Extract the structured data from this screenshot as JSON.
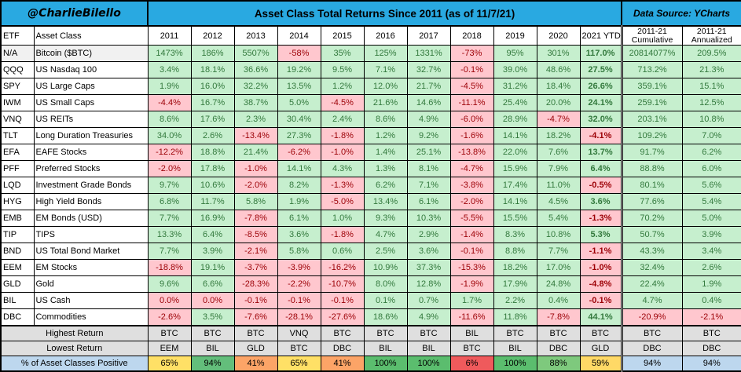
{
  "banner": {
    "handle": "@CharlieBilello",
    "title": "Asset Class Total Returns Since 2011 (as of 11/7/21)",
    "source": "Data Source: YCharts"
  },
  "colors": {
    "banner_blue": "#29A9E1",
    "positive_bg": "#C6EFCE",
    "positive_text": "#33793D",
    "negative_bg": "#FFC7CE",
    "negative_text": "#9C0006",
    "gray_header": "#B3B3B3",
    "summary_gray": "#DFDFDF",
    "light_blue": "#BDD7EE"
  },
  "chart_data": {
    "type": "table",
    "title": "Asset Class Total Returns Since 2011 (as of 11/7/21)",
    "columns": [
      "ETF",
      "Asset Class",
      "2011",
      "2012",
      "2013",
      "2014",
      "2015",
      "2016",
      "2017",
      "2018",
      "2019",
      "2020",
      "2021 YTD",
      "2011-21 Cumulative",
      "2011-21 Annualized"
    ],
    "rows": [
      {
        "etf": "N/A",
        "name": "Bitcoin ($BTC)",
        "values": [
          "1473%",
          "186%",
          "5507%",
          "-58%",
          "35%",
          "125%",
          "1331%",
          "-73%",
          "95%",
          "301%"
        ],
        "ytd": "117.0%",
        "cumulative": "20814077%",
        "annualized": "209.5%"
      },
      {
        "etf": "QQQ",
        "name": "US Nasdaq 100",
        "values": [
          "3.4%",
          "18.1%",
          "36.6%",
          "19.2%",
          "9.5%",
          "7.1%",
          "32.7%",
          "-0.1%",
          "39.0%",
          "48.6%"
        ],
        "ytd": "27.5%",
        "cumulative": "713.2%",
        "annualized": "21.3%"
      },
      {
        "etf": "SPY",
        "name": "US Large Caps",
        "values": [
          "1.9%",
          "16.0%",
          "32.2%",
          "13.5%",
          "1.2%",
          "12.0%",
          "21.7%",
          "-4.5%",
          "31.2%",
          "18.4%"
        ],
        "ytd": "26.6%",
        "cumulative": "359.1%",
        "annualized": "15.1%"
      },
      {
        "etf": "IWM",
        "name": "US Small Caps",
        "values": [
          "-4.4%",
          "16.7%",
          "38.7%",
          "5.0%",
          "-4.5%",
          "21.6%",
          "14.6%",
          "-11.1%",
          "25.4%",
          "20.0%"
        ],
        "ytd": "24.1%",
        "cumulative": "259.1%",
        "annualized": "12.5%"
      },
      {
        "etf": "VNQ",
        "name": "US REITs",
        "values": [
          "8.6%",
          "17.6%",
          "2.3%",
          "30.4%",
          "2.4%",
          "8.6%",
          "4.9%",
          "-6.0%",
          "28.9%",
          "-4.7%"
        ],
        "ytd": "32.0%",
        "cumulative": "203.1%",
        "annualized": "10.8%"
      },
      {
        "etf": "TLT",
        "name": "Long Duration Treasuries",
        "values": [
          "34.0%",
          "2.6%",
          "-13.4%",
          "27.3%",
          "-1.8%",
          "1.2%",
          "9.2%",
          "-1.6%",
          "14.1%",
          "18.2%"
        ],
        "ytd": "-4.1%",
        "cumulative": "109.2%",
        "annualized": "7.0%"
      },
      {
        "etf": "EFA",
        "name": "EAFE Stocks",
        "values": [
          "-12.2%",
          "18.8%",
          "21.4%",
          "-6.2%",
          "-1.0%",
          "1.4%",
          "25.1%",
          "-13.8%",
          "22.0%",
          "7.6%"
        ],
        "ytd": "13.7%",
        "cumulative": "91.7%",
        "annualized": "6.2%"
      },
      {
        "etf": "PFF",
        "name": "Preferred Stocks",
        "values": [
          "-2.0%",
          "17.8%",
          "-1.0%",
          "14.1%",
          "4.3%",
          "1.3%",
          "8.1%",
          "-4.7%",
          "15.9%",
          "7.9%"
        ],
        "ytd": "6.4%",
        "cumulative": "88.8%",
        "annualized": "6.0%"
      },
      {
        "etf": "LQD",
        "name": "Investment Grade Bonds",
        "values": [
          "9.7%",
          "10.6%",
          "-2.0%",
          "8.2%",
          "-1.3%",
          "6.2%",
          "7.1%",
          "-3.8%",
          "17.4%",
          "11.0%"
        ],
        "ytd": "-0.5%",
        "cumulative": "80.1%",
        "annualized": "5.6%"
      },
      {
        "etf": "HYG",
        "name": "High Yield Bonds",
        "values": [
          "6.8%",
          "11.7%",
          "5.8%",
          "1.9%",
          "-5.0%",
          "13.4%",
          "6.1%",
          "-2.0%",
          "14.1%",
          "4.5%"
        ],
        "ytd": "3.6%",
        "cumulative": "77.6%",
        "annualized": "5.4%"
      },
      {
        "etf": "EMB",
        "name": "EM Bonds (USD)",
        "values": [
          "7.7%",
          "16.9%",
          "-7.8%",
          "6.1%",
          "1.0%",
          "9.3%",
          "10.3%",
          "-5.5%",
          "15.5%",
          "5.4%"
        ],
        "ytd": "-1.3%",
        "cumulative": "70.2%",
        "annualized": "5.0%"
      },
      {
        "etf": "TIP",
        "name": "TIPS",
        "values": [
          "13.3%",
          "6.4%",
          "-8.5%",
          "3.6%",
          "-1.8%",
          "4.7%",
          "2.9%",
          "-1.4%",
          "8.3%",
          "10.8%"
        ],
        "ytd": "5.3%",
        "cumulative": "50.7%",
        "annualized": "3.9%"
      },
      {
        "etf": "BND",
        "name": "US Total Bond Market",
        "values": [
          "7.7%",
          "3.9%",
          "-2.1%",
          "5.8%",
          "0.6%",
          "2.5%",
          "3.6%",
          "-0.1%",
          "8.8%",
          "7.7%"
        ],
        "ytd": "-1.1%",
        "cumulative": "43.3%",
        "annualized": "3.4%"
      },
      {
        "etf": "EEM",
        "name": "EM Stocks",
        "values": [
          "-18.8%",
          "19.1%",
          "-3.7%",
          "-3.9%",
          "-16.2%",
          "10.9%",
          "37.3%",
          "-15.3%",
          "18.2%",
          "17.0%"
        ],
        "ytd": "-1.0%",
        "cumulative": "32.4%",
        "annualized": "2.6%"
      },
      {
        "etf": "GLD",
        "name": "Gold",
        "values": [
          "9.6%",
          "6.6%",
          "-28.3%",
          "-2.2%",
          "-10.7%",
          "8.0%",
          "12.8%",
          "-1.9%",
          "17.9%",
          "24.8%"
        ],
        "ytd": "-4.8%",
        "cumulative": "22.4%",
        "annualized": "1.9%"
      },
      {
        "etf": "BIL",
        "name": "US Cash",
        "values": [
          "0.0%",
          "0.0%",
          "-0.1%",
          "-0.1%",
          "-0.1%",
          "0.1%",
          "0.7%",
          "1.7%",
          "2.2%",
          "0.4%"
        ],
        "ytd": "-0.1%",
        "cumulative": "4.7%",
        "annualized": "0.4%"
      },
      {
        "etf": "DBC",
        "name": "Commodities",
        "values": [
          "-2.6%",
          "3.5%",
          "-7.6%",
          "-28.1%",
          "-27.6%",
          "18.6%",
          "4.9%",
          "-11.6%",
          "11.8%",
          "-7.8%"
        ],
        "ytd": "44.1%",
        "cumulative": "-20.9%",
        "annualized": "-2.1%"
      }
    ],
    "summary": {
      "highest": {
        "label": "Highest Return",
        "values": [
          "BTC",
          "BTC",
          "BTC",
          "VNQ",
          "BTC",
          "BTC",
          "BTC",
          "BIL",
          "BTC",
          "BTC",
          "BTC",
          "BTC",
          "BTC"
        ]
      },
      "lowest": {
        "label": "Lowest Return",
        "values": [
          "EEM",
          "BIL",
          "GLD",
          "BTC",
          "DBC",
          "BIL",
          "BIL",
          "BTC",
          "BIL",
          "DBC",
          "GLD",
          "DBC",
          "DBC"
        ]
      },
      "pct_positive": {
        "label": "% of Asset Classes Positive",
        "values": [
          "65%",
          "94%",
          "41%",
          "65%",
          "41%",
          "100%",
          "100%",
          "6%",
          "100%",
          "88%",
          "59%",
          "94%",
          "94%"
        ],
        "cell_colors": [
          "#FFE066",
          "#63BE7B",
          "#FCA467",
          "#FFE066",
          "#FCA467",
          "#5BBD6E",
          "#5BBD6E",
          "#EF5A5C",
          "#5BBD6E",
          "#7EC97D",
          "#FFD966",
          "#BDD7EE",
          "#BDD7EE"
        ]
      }
    }
  }
}
